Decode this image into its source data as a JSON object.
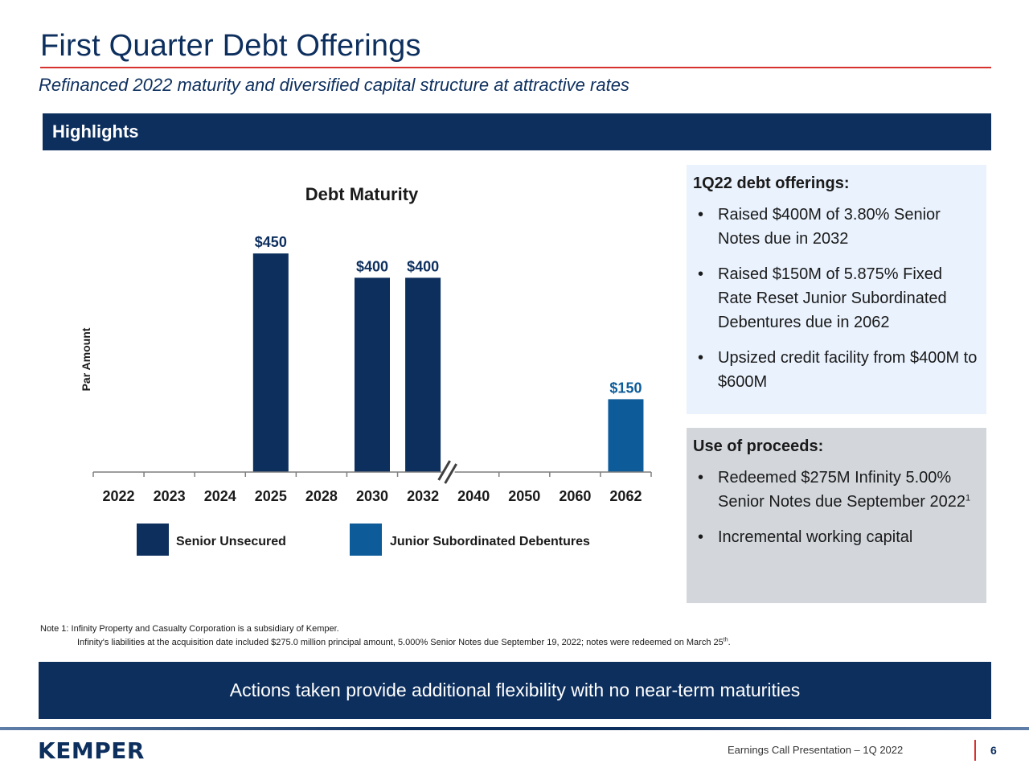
{
  "header": {
    "title": "First Quarter Debt Offerings",
    "subtitle": "Refinanced 2022 maturity and diversified capital structure at attractive rates"
  },
  "highlights_label": "Highlights",
  "chart_data": {
    "type": "bar",
    "title": "Debt Maturity",
    "ylabel": "Par Amount",
    "xlabel": "",
    "categories": [
      "2022",
      "2023",
      "2024",
      "2025",
      "2028",
      "2030",
      "2032",
      "2040",
      "2050",
      "2060",
      "2062"
    ],
    "series": [
      {
        "name": "Senior Unsecured",
        "color": "#0d2f5e",
        "values": [
          0,
          0,
          0,
          450,
          0,
          400,
          400,
          0,
          0,
          0,
          0
        ]
      },
      {
        "name": "Junior Subordinated Debentures",
        "color": "#0d5c99",
        "values": [
          0,
          0,
          0,
          0,
          0,
          0,
          0,
          0,
          0,
          0,
          150
        ]
      }
    ],
    "data_labels": [
      {
        "category": "2025",
        "text": "$450",
        "value": 450,
        "series": 0
      },
      {
        "category": "2030",
        "text": "$400",
        "value": 400,
        "series": 0
      },
      {
        "category": "2032",
        "text": "$400",
        "value": 400,
        "series": 0
      },
      {
        "category": "2062",
        "text": "$150",
        "value": 150,
        "series": 1
      }
    ],
    "ylim": [
      0,
      500
    ],
    "axis_break_after": "2032",
    "grid": false,
    "legend_position": "bottom"
  },
  "offerings_panel": {
    "heading": "1Q22 debt offerings:",
    "bullets": [
      "Raised $400M of 3.80% Senior Notes due in 2032",
      "Raised $150M of 5.875% Fixed Rate Reset Junior Subordinated Debentures due in 2062",
      "Upsized credit facility from $400M to $600M"
    ]
  },
  "proceeds_panel": {
    "heading": "Use of proceeds:",
    "bullet1_text": "Redeemed $275M Infinity 5.00% Senior Notes due September 2022",
    "bullet1_sup": "1",
    "bullet2": "Incremental working capital"
  },
  "note": {
    "line1": "Note 1: Infinity Property and Casualty Corporation is a subsidiary of Kemper.",
    "line2": "Infinity's liabilities at the acquisition date included $275.0 million principal amount, 5.000% Senior Notes due September 19, 2022;  notes were redeemed on March 25",
    "line2_sup": "th",
    "line2_end": "."
  },
  "banner": "Actions taken provide additional flexibility with no near-term maturities",
  "footer": {
    "logo": "KEMPER",
    "text": "Earnings Call Presentation – 1Q 2022",
    "page": "6"
  },
  "colors": {
    "navy": "#0d2f5e",
    "accent_red": "#d6322e",
    "junior_blue": "#0d5c99"
  }
}
